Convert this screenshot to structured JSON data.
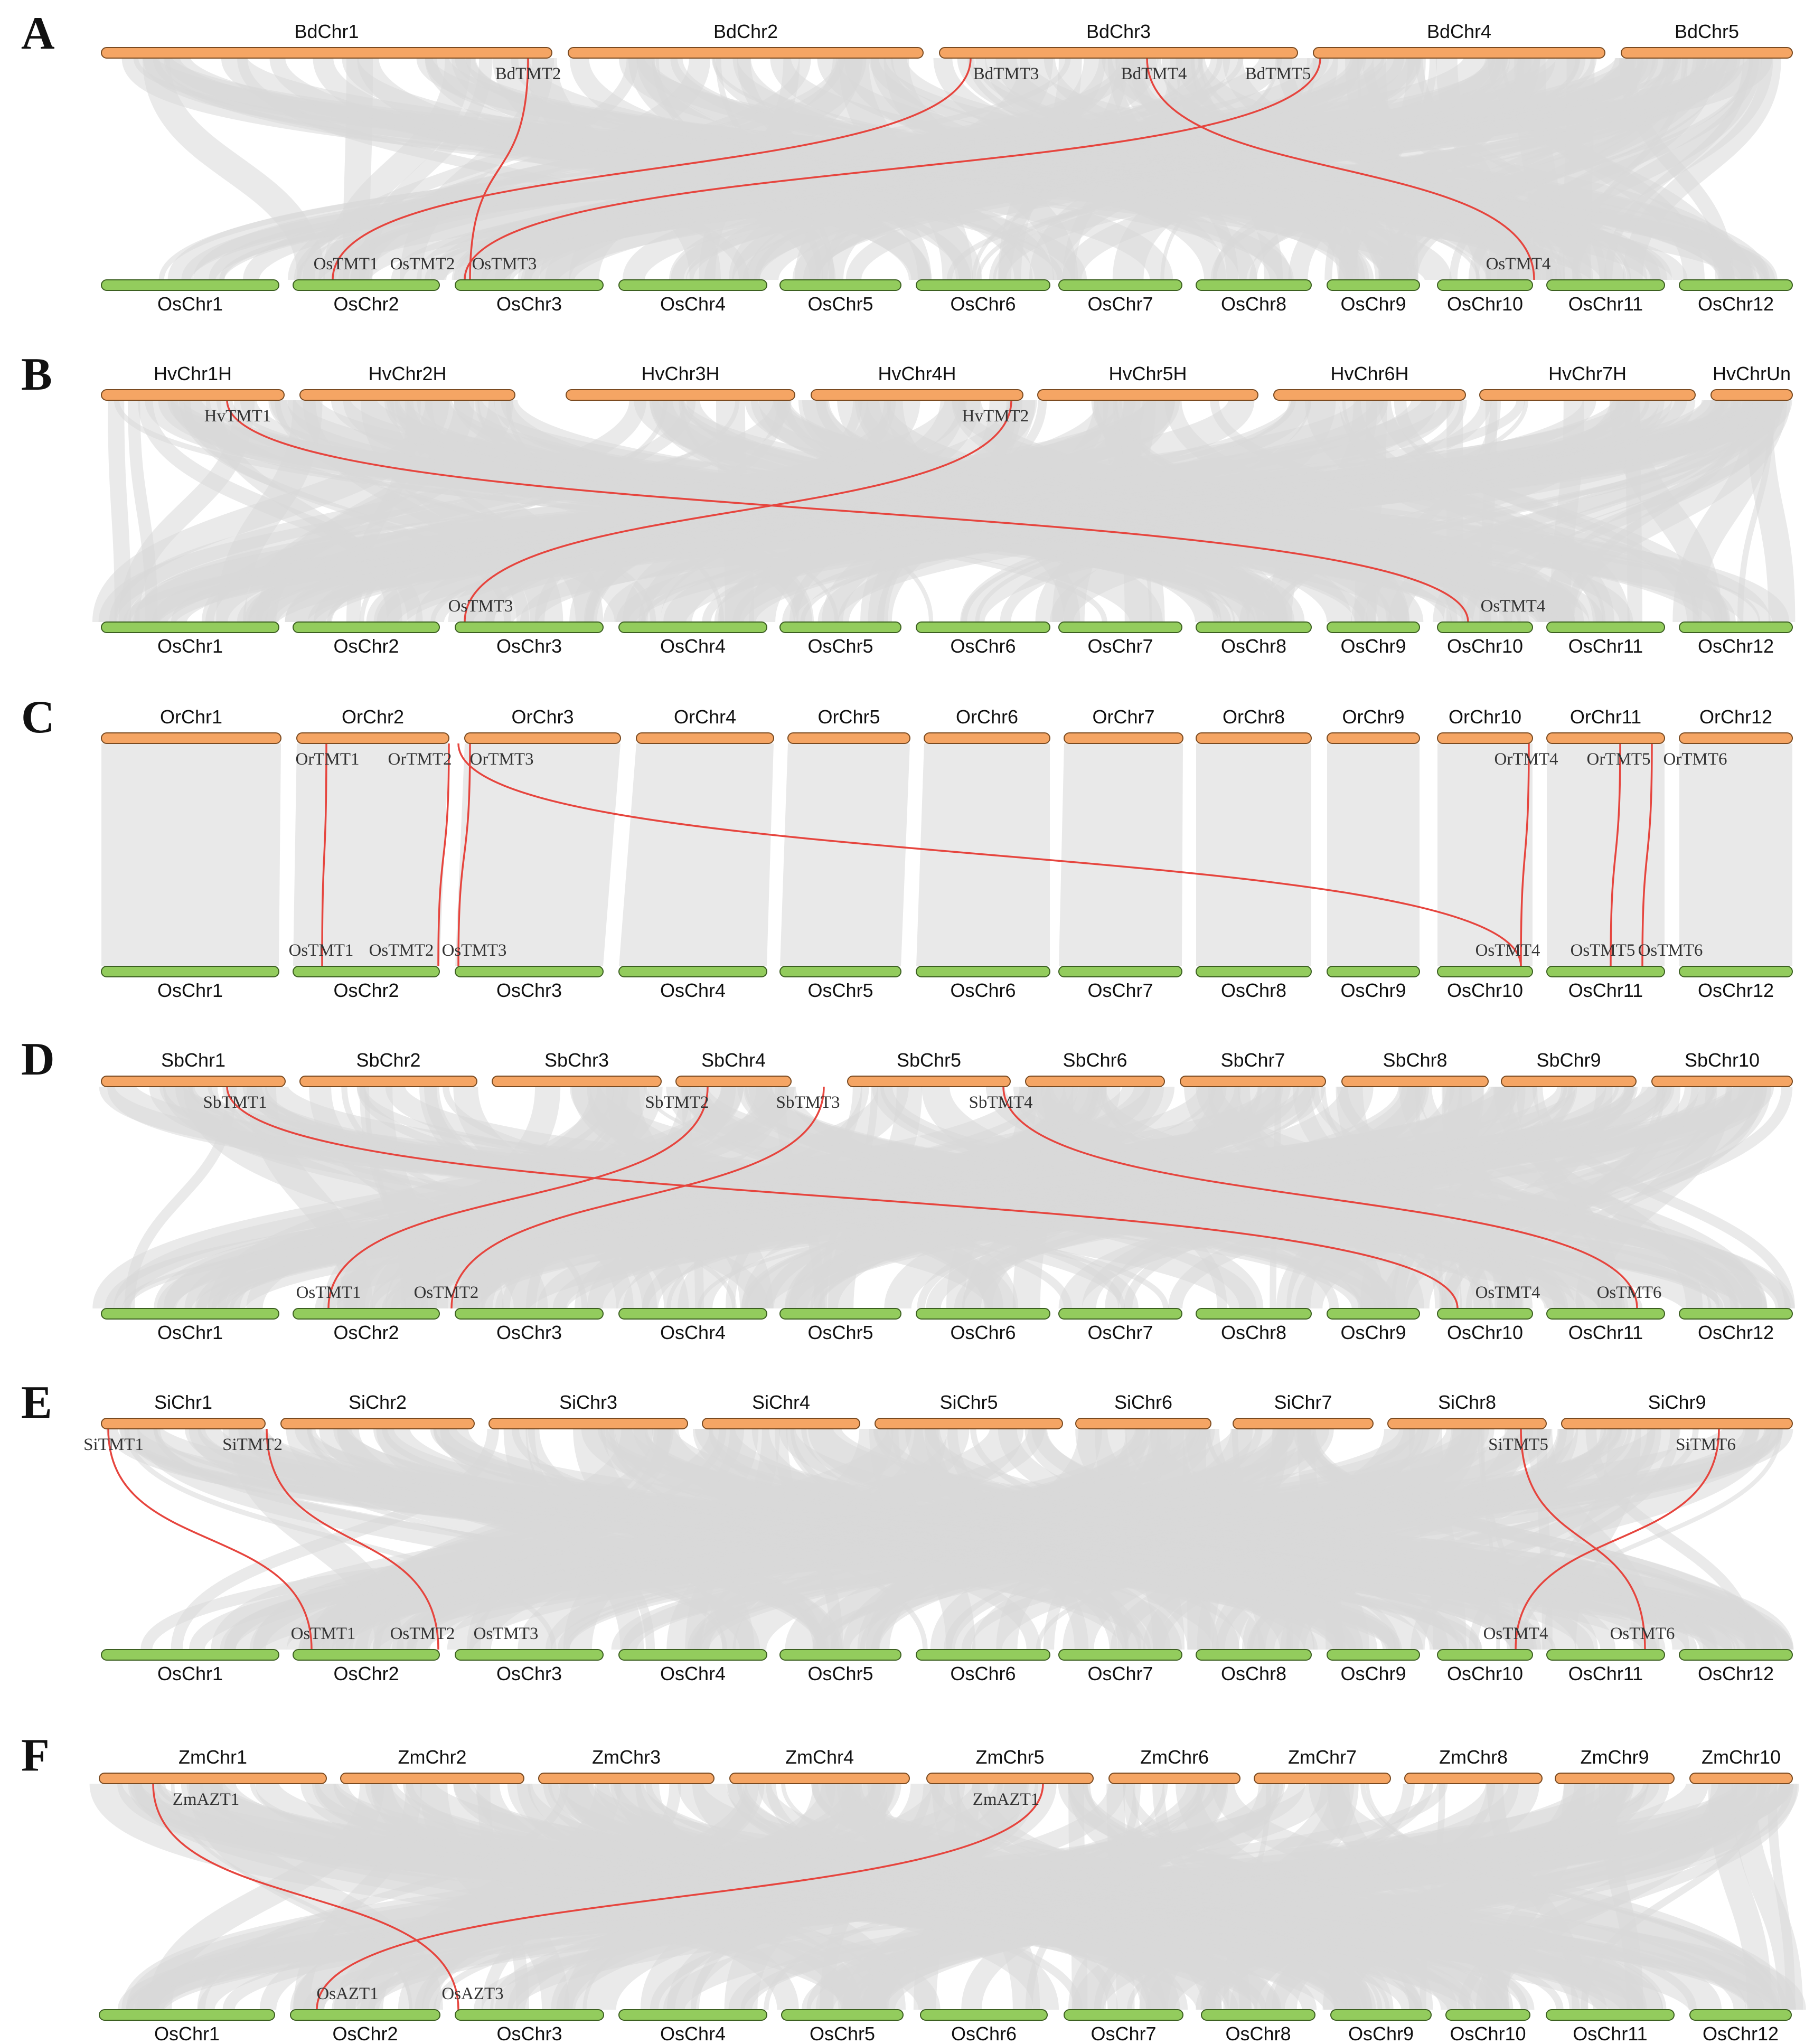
{
  "colors": {
    "top_chromosome": "#f5a564",
    "bottom_chromosome": "#93cc5d",
    "collinear_block": "#d9d9d9",
    "highlighted_link": "#e6453e"
  },
  "bottom_chromosomes": [
    "OsChr1",
    "OsChr2",
    "OsChr3",
    "OsChr4",
    "OsChr5",
    "OsChr6",
    "OsChr7",
    "OsChr8",
    "OsChr9",
    "OsChr10",
    "OsChr11",
    "OsChr12"
  ],
  "panels": [
    {
      "letter": "A",
      "top_chromosomes": [
        "BdChr1",
        "BdChr2",
        "BdChr3",
        "BdChr4",
        "BdChr5"
      ],
      "top_genes": [
        "BdTMT2",
        "BdTMT3",
        "BdTMT4",
        "BdTMT5"
      ],
      "bottom_genes": [
        "OsTMT1",
        "OsTMT2",
        "OsTMT3",
        "OsTMT4"
      ]
    },
    {
      "letter": "B",
      "top_chromosomes": [
        "HvChr1H",
        "HvChr2H",
        "HvChr3H",
        "HvChr4H",
        "HvChr5H",
        "HvChr6H",
        "HvChr7H",
        "HvChrUn"
      ],
      "top_genes": [
        "HvTMT1",
        "HvTMT2"
      ],
      "bottom_genes": [
        "OsTMT3",
        "OsTMT4"
      ]
    },
    {
      "letter": "C",
      "top_chromosomes": [
        "OrChr1",
        "OrChr2",
        "OrChr3",
        "OrChr4",
        "OrChr5",
        "OrChr6",
        "OrChr7",
        "OrChr8",
        "OrChr9",
        "OrChr10",
        "OrChr11",
        "OrChr12"
      ],
      "top_genes": [
        "OrTMT1",
        "OrTMT2",
        "OrTMT3",
        "OrTMT4",
        "OrTMT5",
        "OrTMT6"
      ],
      "bottom_genes": [
        "OsTMT1",
        "OsTMT2",
        "OsTMT3",
        "OsTMT4",
        "OsTMT5",
        "OsTMT6"
      ]
    },
    {
      "letter": "D",
      "top_chromosomes": [
        "SbChr1",
        "SbChr2",
        "SbChr3",
        "SbChr4",
        "SbChr5",
        "SbChr6",
        "SbChr7",
        "SbChr8",
        "SbChr9",
        "SbChr10"
      ],
      "top_genes": [
        "SbTMT1",
        "SbTMT2",
        "SbTMT3",
        "SbTMT4"
      ],
      "bottom_genes": [
        "OsTMT1",
        "OsTMT2",
        "OsTMT4",
        "OsTMT6"
      ]
    },
    {
      "letter": "E",
      "top_chromosomes": [
        "SiChr1",
        "SiChr2",
        "SiChr3",
        "SiChr4",
        "SiChr5",
        "SiChr6",
        "SiChr7",
        "SiChr8",
        "SiChr9"
      ],
      "top_genes": [
        "SiTMT1",
        "SiTMT2",
        "SiTMT5",
        "SiTMT6"
      ],
      "bottom_genes": [
        "OsTMT1",
        "OsTMT2",
        "OsTMT3",
        "OsTMT4",
        "OsTMT6"
      ]
    },
    {
      "letter": "F",
      "top_chromosomes": [
        "ZmChr1",
        "ZmChr2",
        "ZmChr3",
        "ZmChr4",
        "ZmChr5",
        "ZmChr6",
        "ZmChr7",
        "ZmChr8",
        "ZmChr9",
        "ZmChr10"
      ],
      "top_genes": [
        "ZmAZT1",
        "ZmAZT1"
      ],
      "bottom_genes": [
        "OsAZT1",
        "OsAZT3"
      ]
    }
  ]
}
